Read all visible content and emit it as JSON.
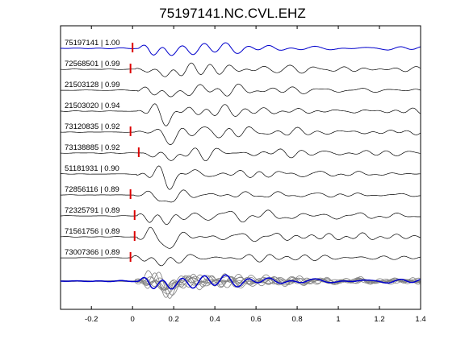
{
  "chart_data": {
    "type": "line",
    "title": "75197141.NC.CVL.EHZ",
    "xlabel": "",
    "ylabel": "",
    "xlim": [
      -0.35,
      1.4
    ],
    "xticks": [
      -0.2,
      0,
      0.2,
      0.4,
      0.6,
      0.8,
      1,
      1.2,
      1.4
    ],
    "xtick_labels": [
      "-0.2",
      "0",
      "0.2",
      "0.4",
      "0.6",
      "0.8",
      "1",
      "1.2",
      "1.4"
    ],
    "grid": false,
    "colors": {
      "reference": "#0000cc",
      "trace": "#000000",
      "overlay": "#808080",
      "pick": "#dd0000"
    },
    "traces": [
      {
        "label": "75197141 | 1.00",
        "pick_time": 0.0,
        "reference": true
      },
      {
        "label": "72568501 | 0.99",
        "pick_time": -0.01
      },
      {
        "label": "21503128 | 0.99",
        "pick_time": null
      },
      {
        "label": "21503020 | 0.94",
        "pick_time": null
      },
      {
        "label": "73120835 | 0.92",
        "pick_time": -0.01
      },
      {
        "label": "73138885 | 0.92",
        "pick_time": 0.03
      },
      {
        "label": "51181931 | 0.90",
        "pick_time": null
      },
      {
        "label": "72856116 | 0.89",
        "pick_time": -0.01
      },
      {
        "label": "72325791 | 0.89",
        "pick_time": 0.01
      },
      {
        "label": "71561756 | 0.89",
        "pick_time": 0.01
      },
      {
        "label": "73007366 | 0.89",
        "pick_time": -0.01
      }
    ],
    "stack_label": ""
  }
}
